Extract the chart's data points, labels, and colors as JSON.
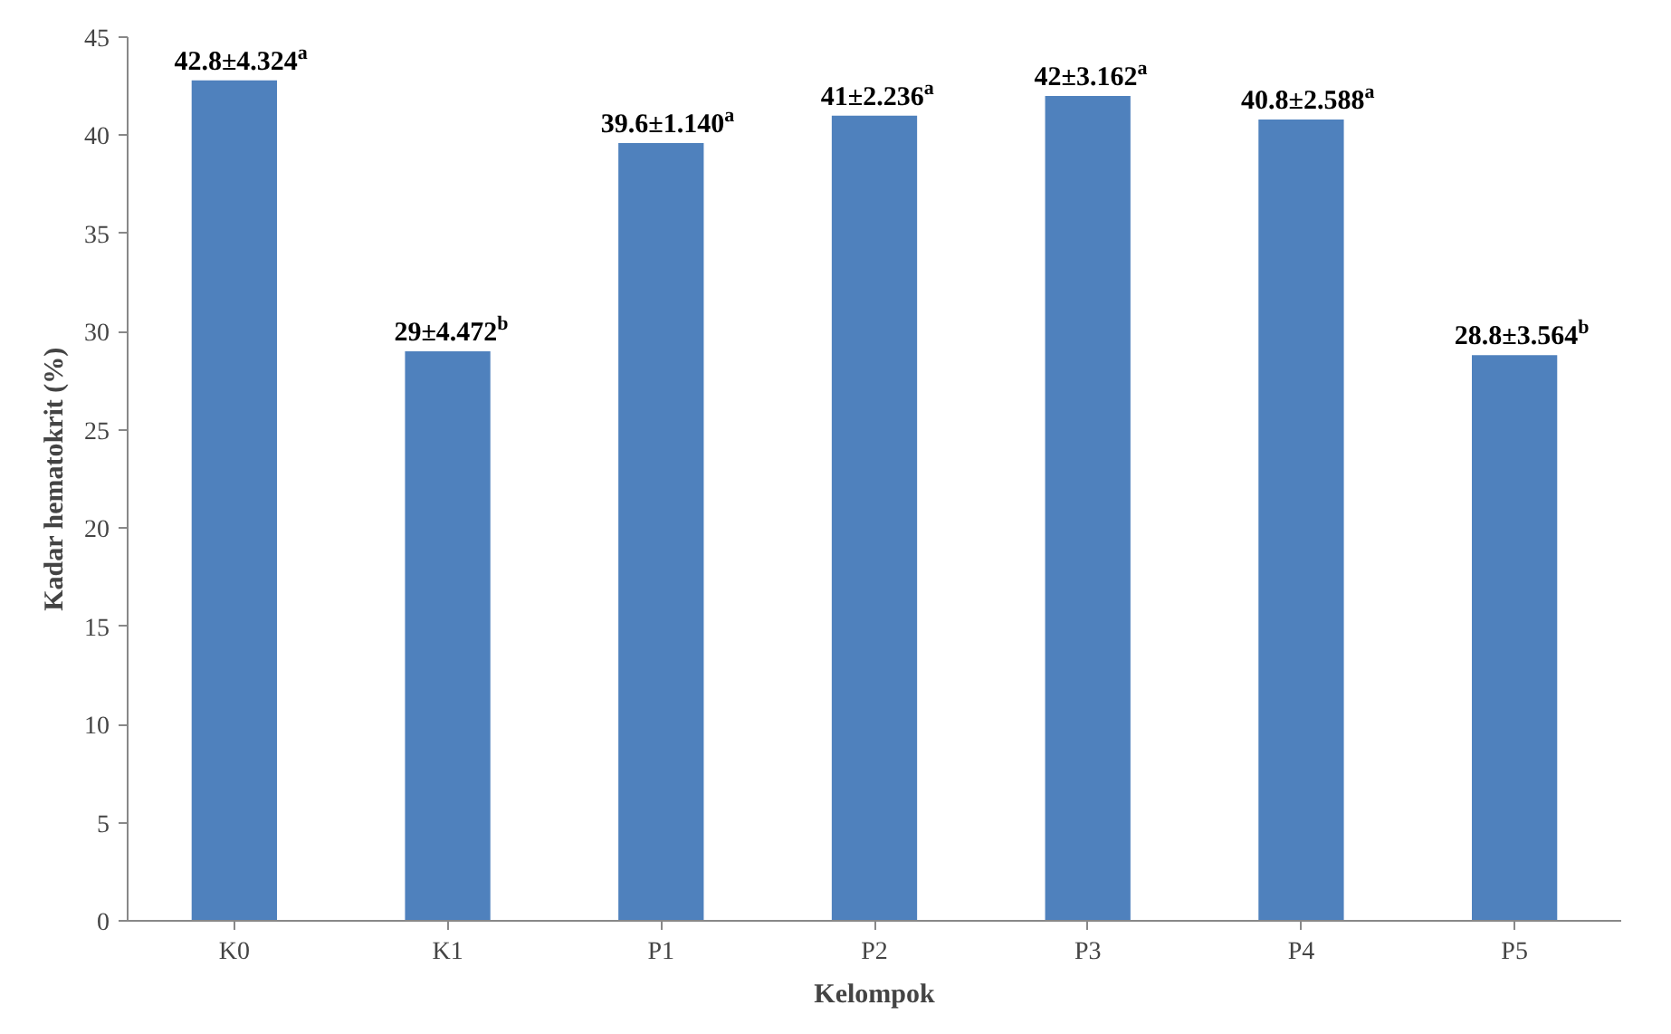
{
  "chart_data": {
    "type": "bar",
    "xlabel": "Kelompok",
    "ylabel": "Kadar hematokrit (%)",
    "categories": [
      "K0",
      "K1",
      "P1",
      "P2",
      "P3",
      "P4",
      "P5"
    ],
    "values": [
      42.8,
      29,
      39.6,
      41,
      42,
      40.8,
      28.8
    ],
    "value_labels": [
      "42.8±4.324$^{a}$",
      "29±4.472$^{b}$",
      "39.6±1.140$^{a}$",
      "41±2.236$^{a}$",
      "42±3.162$^{a}$",
      "40.8±2.588$^{a}$",
      "28.8±3.564$^{b}$"
    ],
    "color": "#4f81bd",
    "ylim": [
      0,
      45
    ],
    "yticks": [
      0,
      5,
      10,
      15,
      20,
      25,
      30,
      35,
      40,
      45
    ],
    "grid": false
  }
}
